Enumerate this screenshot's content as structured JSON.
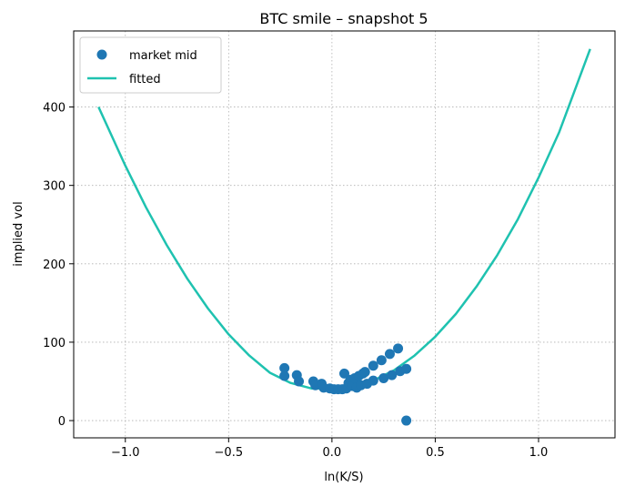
{
  "chart_data": {
    "type": "scatter",
    "title": "BTC smile – snapshot 5",
    "xlabel": "ln(K/S)",
    "ylabel": "implied vol",
    "xlim": [
      -1.25,
      1.37
    ],
    "ylim": [
      -22,
      497
    ],
    "xticks": [
      -1.0,
      -0.5,
      0.0,
      0.5,
      1.0
    ],
    "xtick_labels": [
      "−1.0",
      "−0.5",
      "0.0",
      "0.5",
      "1.0"
    ],
    "yticks": [
      0,
      100,
      200,
      300,
      400
    ],
    "ytick_labels": [
      "0",
      "100",
      "200",
      "300",
      "400"
    ],
    "grid": true,
    "legend_position": "top-left",
    "colors": {
      "scatter": "#1f77b4",
      "fitted": "#1fc2b0"
    },
    "series": [
      {
        "name": "market mid",
        "kind": "scatter",
        "points": [
          [
            -0.23,
            67
          ],
          [
            -0.23,
            57
          ],
          [
            -0.17,
            58
          ],
          [
            -0.16,
            50
          ],
          [
            -0.09,
            50
          ],
          [
            -0.08,
            45
          ],
          [
            -0.05,
            47
          ],
          [
            -0.04,
            42
          ],
          [
            -0.01,
            41
          ],
          [
            0.01,
            40
          ],
          [
            0.03,
            40
          ],
          [
            0.05,
            40
          ],
          [
            0.06,
            60
          ],
          [
            0.07,
            41
          ],
          [
            0.08,
            48
          ],
          [
            0.09,
            52
          ],
          [
            0.1,
            44
          ],
          [
            0.11,
            54
          ],
          [
            0.12,
            42
          ],
          [
            0.13,
            57
          ],
          [
            0.14,
            45
          ],
          [
            0.15,
            60
          ],
          [
            0.16,
            62
          ],
          [
            0.17,
            47
          ],
          [
            0.2,
            70
          ],
          [
            0.2,
            51
          ],
          [
            0.24,
            77
          ],
          [
            0.25,
            54
          ],
          [
            0.28,
            85
          ],
          [
            0.29,
            58
          ],
          [
            0.32,
            92
          ],
          [
            0.33,
            63
          ],
          [
            0.36,
            66
          ],
          [
            0.36,
            0
          ]
        ]
      },
      {
        "name": "fitted",
        "kind": "line",
        "x": [
          -1.13,
          -1.0,
          -0.9,
          -0.8,
          -0.7,
          -0.6,
          -0.5,
          -0.4,
          -0.3,
          -0.2,
          -0.1,
          0.0,
          0.1,
          0.2,
          0.3,
          0.4,
          0.5,
          0.6,
          0.7,
          0.8,
          0.9,
          1.0,
          1.1,
          1.25
        ],
        "y": [
          400,
          325,
          272,
          224,
          181,
          143,
          110,
          83,
          61,
          48,
          41,
          41,
          44,
          51,
          64,
          83,
          107,
          136,
          171,
          211,
          257,
          310,
          368,
          474
        ]
      }
    ]
  }
}
